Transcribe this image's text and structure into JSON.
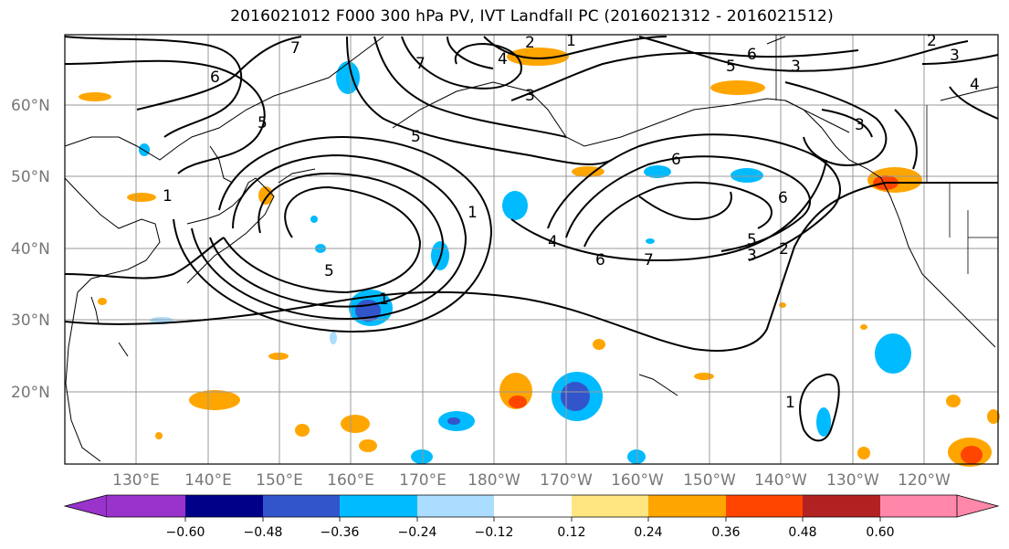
{
  "title": "2016021012 F000 300 hPa PV, IVT Landfall PC (2016021312 - 2016021512)",
  "latitude_labels": [
    "60°N",
    "50°N",
    "40°N",
    "30°N",
    "20°N"
  ],
  "longitude_labels": [
    "130°E",
    "140°E",
    "150°E",
    "160°E",
    "170°E",
    "180°W",
    "170°W",
    "160°W",
    "150°W",
    "140°W",
    "130°W",
    "120°W"
  ],
  "contour_levels": [
    "1",
    "2",
    "3",
    "4",
    "5",
    "6",
    "7"
  ],
  "colorbar": {
    "ticks": [
      "−0.60",
      "−0.48",
      "−0.36",
      "−0.24",
      "−0.12",
      "0.12",
      "0.24",
      "0.36",
      "0.48",
      "0.60"
    ],
    "colors": [
      "#9933cc",
      "#000088",
      "#3355cc",
      "#00bbff",
      "#aaddff",
      "#ffffff",
      "#ffe680",
      "#ffa500",
      "#ff4500",
      "#b22222",
      "#ff88aa"
    ]
  },
  "colors": {
    "grid": "#999999",
    "coast": "#000000",
    "contour": "#000000",
    "axis_label": "#777777"
  }
}
